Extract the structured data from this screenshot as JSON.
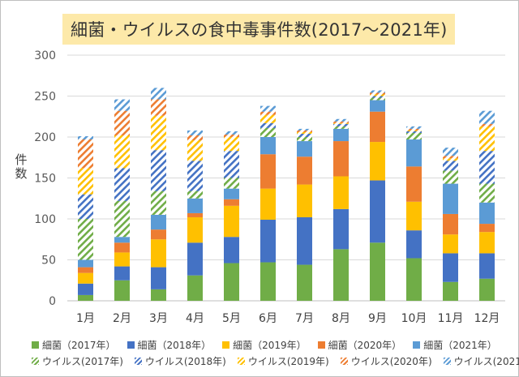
{
  "title": "細菌・ウイルスの食中毒事件数(2017～2021年)",
  "ylabel": "件数",
  "colors": {
    "2017": "#70ad47",
    "2018": "#4472c4",
    "2019": "#ffc000",
    "2020": "#ed7d31",
    "2021": "#5b9bd5"
  },
  "chart_data": {
    "type": "bar",
    "stacked": true,
    "categories": [
      "1月",
      "2月",
      "3月",
      "4月",
      "5月",
      "6月",
      "7月",
      "8月",
      "9月",
      "10月",
      "11月",
      "12月"
    ],
    "ylim": [
      0,
      300
    ],
    "yticks": [
      0,
      50,
      100,
      150,
      200,
      250,
      300
    ],
    "grid": true,
    "legend_position": "bottom",
    "series": [
      {
        "name": "細菌（2017年）",
        "year": "2017",
        "pattern": "solid",
        "values": [
          7,
          25,
          14,
          31,
          46,
          47,
          44,
          63,
          71,
          52,
          23,
          27
        ]
      },
      {
        "name": "細菌（2018年）",
        "year": "2018",
        "pattern": "solid",
        "values": [
          14,
          17,
          27,
          40,
          32,
          52,
          58,
          49,
          76,
          34,
          35,
          31
        ]
      },
      {
        "name": "細菌（2019年）",
        "year": "2019",
        "pattern": "solid",
        "values": [
          13,
          17,
          34,
          31,
          38,
          38,
          40,
          40,
          47,
          35,
          23,
          26
        ]
      },
      {
        "name": "細菌（2020年）",
        "year": "2020",
        "pattern": "solid",
        "values": [
          7,
          12,
          12,
          5,
          8,
          42,
          34,
          43,
          37,
          43,
          25,
          10
        ]
      },
      {
        "name": "細菌（2021年）",
        "year": "2021",
        "pattern": "solid",
        "values": [
          9,
          7,
          18,
          18,
          13,
          21,
          19,
          15,
          14,
          33,
          37,
          26
        ]
      },
      {
        "name": "ウイルス(2017年)",
        "year": "2017",
        "pattern": "hatch",
        "values": [
          50,
          44,
          29,
          9,
          13,
          11,
          5,
          3,
          3,
          8,
          16,
          23
        ]
      },
      {
        "name": "ウイルス(2018年)",
        "year": "2018",
        "pattern": "hatch",
        "values": [
          30,
          40,
          50,
          37,
          33,
          6,
          4,
          3,
          2,
          2,
          12,
          40
        ]
      },
      {
        "name": "ウイルス(2019年)",
        "year": "2019",
        "pattern": "hatch",
        "values": [
          32,
          40,
          42,
          25,
          17,
          10,
          2,
          1,
          2,
          1,
          3,
          30
        ]
      },
      {
        "name": "ウイルス(2020年)",
        "year": "2020",
        "pattern": "hatch",
        "values": [
          35,
          30,
          20,
          6,
          3,
          4,
          2,
          2,
          2,
          2,
          3,
          3
        ]
      },
      {
        "name": "ウイルス(2021年)",
        "year": "2021",
        "pattern": "hatch",
        "values": [
          4,
          14,
          14,
          6,
          4,
          7,
          2,
          3,
          3,
          3,
          10,
          16
        ]
      }
    ]
  }
}
